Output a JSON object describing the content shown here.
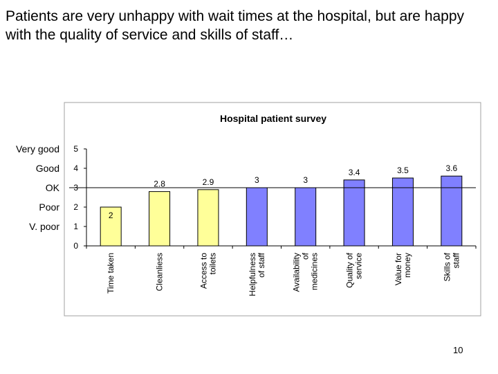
{
  "headline": "Patients are very unhappy with wait times at the hospital, but are happy with the quality of service and skills of staff…",
  "rating_labels": [
    {
      "label": "Very good",
      "value": 5
    },
    {
      "label": "Good",
      "value": 4
    },
    {
      "label": "OK",
      "value": 3
    },
    {
      "label": "Poor",
      "value": 2
    },
    {
      "label": "V. poor",
      "value": 1
    }
  ],
  "page_number": "10",
  "chart_data": {
    "type": "bar",
    "title": "Hospital patient survey",
    "categories": [
      [
        "Time taken"
      ],
      [
        "Cleanliess"
      ],
      [
        "Access to",
        "toilets"
      ],
      [
        "Helpfulness",
        "of staff"
      ],
      [
        "Availability",
        "of",
        "medicines"
      ],
      [
        "Quality of",
        "service"
      ],
      [
        "Value for",
        "money"
      ],
      [
        "Skills of",
        "staff"
      ]
    ],
    "values": [
      2,
      2.8,
      2.9,
      3,
      3,
      3.4,
      3.5,
      3.6
    ],
    "value_labels": [
      "2",
      "2.8",
      "2.9",
      "3",
      "3",
      "3.4",
      "3.5",
      "3.6"
    ],
    "bar_colors": [
      "#ffff99",
      "#ffff99",
      "#ffff99",
      "#8080ff",
      "#8080ff",
      "#8080ff",
      "#8080ff",
      "#8080ff"
    ],
    "ylim": [
      0,
      5
    ],
    "yticks": [
      0,
      1,
      2,
      3,
      4,
      5
    ],
    "reference_line": 3,
    "xlabel": "",
    "ylabel": "",
    "grid": false,
    "legend": "none"
  }
}
